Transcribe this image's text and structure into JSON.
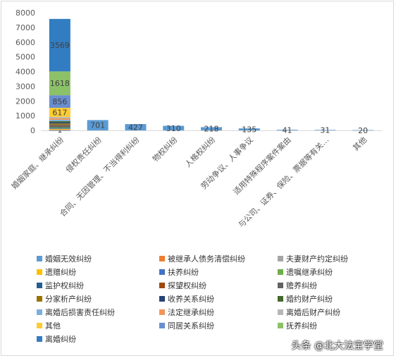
{
  "chart_data": {
    "type": "bar",
    "categories": [
      "婚姻家庭、继承纠纷",
      "侵权责任纠纷",
      "合同、无因管理、不当得利纠纷",
      "物权纠纷",
      "人格权纠纷",
      "劳动争议、人事争议",
      "适用特殊程序案件案由",
      "与公司、证券、保险、票据等有关…",
      "其他"
    ],
    "ylim": [
      0,
      8000
    ],
    "yticks": [
      0,
      1000,
      2000,
      3000,
      4000,
      5000,
      6000,
      7000,
      8000
    ],
    "grid": false,
    "legend_position": "bottom",
    "stack_series": [
      {
        "name": "婚姻无效纠纷",
        "value": 1,
        "label": "1",
        "color": "#5b9bd5"
      },
      {
        "name": "被继承人债务清偿纠纷",
        "value": 25,
        "label": "",
        "color": "#ed7d31"
      },
      {
        "name": "夫妻财产约定纠纷",
        "value": 30,
        "label": "",
        "color": "#a5a5a5"
      },
      {
        "name": "遗赠纠纷",
        "value": 40,
        "label": "",
        "color": "#ffc000"
      },
      {
        "name": "扶养纠纷",
        "value": 45,
        "label": "",
        "color": "#4472c4"
      },
      {
        "name": "遗嘱继承纠纷",
        "value": 55,
        "label": "",
        "color": "#70ad47"
      },
      {
        "name": "监护权纠纷",
        "value": 60,
        "label": "",
        "color": "#255e91"
      },
      {
        "name": "探望权纠纷",
        "value": 65,
        "label": "",
        "color": "#9e480e"
      },
      {
        "name": "赡养纠纷",
        "value": 70,
        "label": "",
        "color": "#636363"
      },
      {
        "name": "分家析产纠纷",
        "value": 75,
        "label": "",
        "color": "#997300"
      },
      {
        "name": "收养关系纠纷",
        "value": 80,
        "label": "",
        "color": "#264478"
      },
      {
        "name": "婚约财产纠纷",
        "value": 85,
        "label": "",
        "color": "#43682b"
      },
      {
        "name": "离婚后损害责任纠纷",
        "value": 90,
        "label": "",
        "color": "#7cafdd"
      },
      {
        "name": "法定继承纠纷",
        "value": 95,
        "label": "",
        "color": "#f1975a"
      },
      {
        "name": "离婚后财产纠纷",
        "value": 100,
        "label": "",
        "color": "#b7b7b7"
      },
      {
        "name": "其他",
        "value": 617,
        "label": "617",
        "color": "#ffcd33"
      },
      {
        "name": "同居关系纠纷",
        "value": 856,
        "label": "856",
        "color": "#698ed0"
      },
      {
        "name": "抚养纠纷",
        "value": 1618,
        "label": "1618",
        "color": "#8cc168"
      },
      {
        "name": "离婚纠纷",
        "value": 3569,
        "label": "3569",
        "color": "#327dc2"
      }
    ],
    "values": [
      null,
      701,
      427,
      310,
      218,
      135,
      41,
      31,
      20
    ],
    "value_labels": [
      "",
      "701",
      "427",
      "310",
      "218",
      "135",
      "41",
      "31",
      "20"
    ],
    "bar_color": "#5b9bd5"
  },
  "watermark": "头条 @北大法宝学堂"
}
